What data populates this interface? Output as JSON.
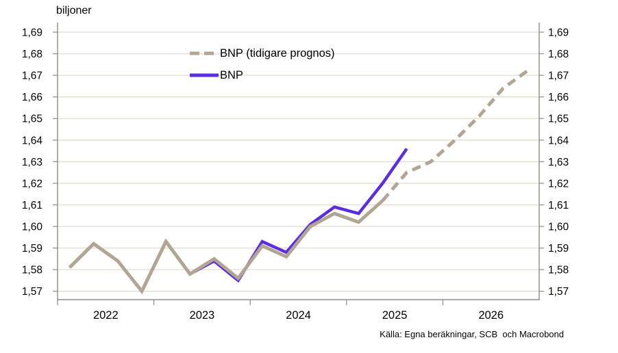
{
  "title": "biljoner",
  "source": "Källa: Egna beräkningar, SCB  och Macrobond",
  "legend": [
    {
      "label": "BNP (tidigare prognos)",
      "style": "dashed",
      "color": "#b1a693"
    },
    {
      "label": "BNP",
      "style": "solid",
      "color": "#5a2ee0"
    }
  ],
  "colors": {
    "background": "#ffffff",
    "gridline": "#e3dbce",
    "axis": "#908c83",
    "text": "#000000",
    "bnp": "#5a2ee0",
    "forecast": "#b1a693"
  },
  "chart_data": {
    "type": "line",
    "title": "biljoner",
    "xlabel": "",
    "ylabel": "biljoner",
    "ylim": [
      1.565,
      1.695
    ],
    "grid": "horizontal",
    "legend_position": "top-left-inside",
    "x_unit": "quarter",
    "categories": [
      "2022 Q1",
      "2022 Q2",
      "2022 Q3",
      "2022 Q4",
      "2023 Q1",
      "2023 Q2",
      "2023 Q3",
      "2023 Q4",
      "2024 Q1",
      "2024 Q2",
      "2024 Q3",
      "2024 Q4",
      "2025 Q1",
      "2025 Q2",
      "2025 Q3",
      "2025 Q4",
      "2026 Q1",
      "2026 Q2",
      "2026 Q3",
      "2026 Q4"
    ],
    "x_year_labels": [
      "2022",
      "2023",
      "2024",
      "2025",
      "2026"
    ],
    "y_ticks": [
      {
        "v": 1.57,
        "label": "1,57"
      },
      {
        "v": 1.58,
        "label": "1,58"
      },
      {
        "v": 1.59,
        "label": "1,59"
      },
      {
        "v": 1.6,
        "label": "1,60"
      },
      {
        "v": 1.61,
        "label": "1,61"
      },
      {
        "v": 1.62,
        "label": "1,62"
      },
      {
        "v": 1.63,
        "label": "1,63"
      },
      {
        "v": 1.64,
        "label": "1,64"
      },
      {
        "v": 1.65,
        "label": "1,65"
      },
      {
        "v": 1.66,
        "label": "1,66"
      },
      {
        "v": 1.67,
        "label": "1,67"
      },
      {
        "v": 1.68,
        "label": "1,68"
      },
      {
        "v": 1.69,
        "label": "1,69"
      }
    ],
    "series": [
      {
        "name": "BNP",
        "color": "#5a2ee0",
        "line_style": "solid",
        "values": [
          1.581,
          1.592,
          1.584,
          1.57,
          1.593,
          1.578,
          1.584,
          1.575,
          1.593,
          1.588,
          1.601,
          1.609,
          1.606,
          1.62,
          1.636,
          null,
          null,
          null,
          null,
          null
        ]
      },
      {
        "name": "BNP (tidigare prognos)",
        "color": "#b1a693",
        "line_style": "solid-then-dashed",
        "dash_from_index": 13,
        "values": [
          1.581,
          1.592,
          1.584,
          1.57,
          1.593,
          1.578,
          1.585,
          1.576,
          1.591,
          1.586,
          1.6,
          1.606,
          1.602,
          1.612,
          1.625,
          1.63,
          1.64,
          1.651,
          1.664,
          1.672
        ]
      }
    ]
  }
}
